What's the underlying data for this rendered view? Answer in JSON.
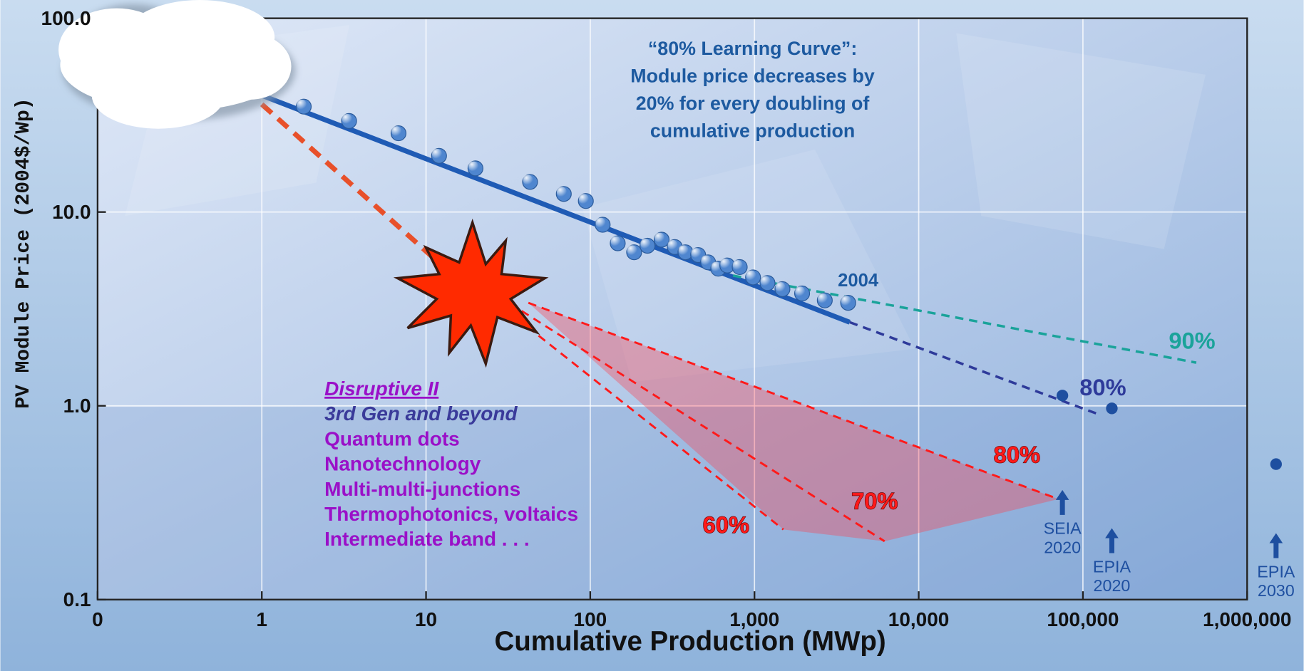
{
  "chart_data": {
    "type": "scatter",
    "xlabel": "Cumulative Production (MWp)",
    "ylabel": "PV Module Price (2004$/Wp)",
    "log_x": true,
    "log_y": true,
    "grid": true,
    "xlim": [
      0.1,
      1000000
    ],
    "xticks": [
      {
        "value": 0.1,
        "label": "0"
      },
      1,
      10,
      100,
      {
        "value": 1000,
        "label": "1,000"
      },
      {
        "value": 10000,
        "label": "10,000"
      },
      {
        "value": 100000,
        "label": "100,000"
      },
      {
        "value": 1000000,
        "label": "1,000,000"
      }
    ],
    "ylim": [
      0.1,
      100
    ],
    "yticks": [
      {
        "value": 0.1,
        "label": "0.1"
      },
      {
        "value": 1,
        "label": "1.0"
      },
      {
        "value": 10,
        "label": "10.0"
      },
      {
        "value": 100,
        "label": "100.0"
      }
    ],
    "color": "#4f86cf",
    "x": [
      1.8,
      3.4,
      6.8,
      12,
      20,
      43,
      69,
      94,
      119,
      147,
      185,
      223,
      272,
      327,
      380,
      454,
      522,
      602,
      683,
      813,
      980,
      1200,
      1480,
      1950,
      2680,
      3720
    ],
    "values": [
      35,
      29.5,
      25.5,
      19.5,
      16.8,
      14.3,
      12.4,
      11.4,
      8.6,
      6.9,
      6.2,
      6.7,
      7.2,
      6.6,
      6.2,
      6.0,
      5.5,
      5.1,
      5.3,
      5.2,
      4.6,
      4.3,
      4.0,
      3.8,
      3.5,
      3.4
    ],
    "point_label": "2004",
    "annotation": [
      "“80% Learning Curve”:",
      "Module price decreases by",
      "20% for every doubling of",
      "cumulative production"
    ],
    "lines": [
      {
        "color": "#1f5bb5",
        "dashed": false,
        "x": [
          1,
          3800
        ],
        "values": [
          40,
          2.7
        ]
      },
      {
        "name": "80%",
        "color": "#2e3a9a",
        "dashed": true,
        "x": [
          3800,
          122000
        ],
        "values": [
          2.7,
          0.91
        ]
      },
      {
        "name": "90%",
        "color": "#1aa39a",
        "dashed": true,
        "x": [
          740,
          490000
        ],
        "values": [
          4.7,
          1.67
        ]
      },
      {
        "color": "#e8502a",
        "dashed": true,
        "x": [
          1,
          12.5
        ],
        "values": [
          36,
          5.3
        ]
      },
      {
        "name": "60%",
        "color": "#ff1a1a",
        "dashed": true,
        "x": [
          14,
          1500
        ],
        "values": [
          5.3,
          0.23
        ]
      },
      {
        "name": "70%",
        "color": "#ff1a1a",
        "dashed": true,
        "x": [
          14,
          6200
        ],
        "values": [
          5.3,
          0.2
        ]
      },
      {
        "name": "80%",
        "color": "#ff1a1a",
        "dashed": true,
        "x": [
          42,
          71000
        ],
        "values": [
          3.4,
          0.33
        ]
      }
    ],
    "targets": [
      {
        "label": [
          "SEIA",
          "2020"
        ],
        "x": 75000,
        "value": 1.13
      },
      {
        "label": [
          "EPIA",
          "2020"
        ],
        "x": 150000,
        "value": 0.97
      },
      {
        "label": [
          "EPIA",
          "2030"
        ],
        "x": 1500000,
        "value": 0.5
      }
    ],
    "disruptive": [
      "Disruptive II",
      "3rd Gen and beyond",
      "Quantum dots",
      "Nanotechnology",
      "Multi-multi-junctions",
      "Thermophotonics, voltaics",
      "Intermediate band . . ."
    ]
  }
}
